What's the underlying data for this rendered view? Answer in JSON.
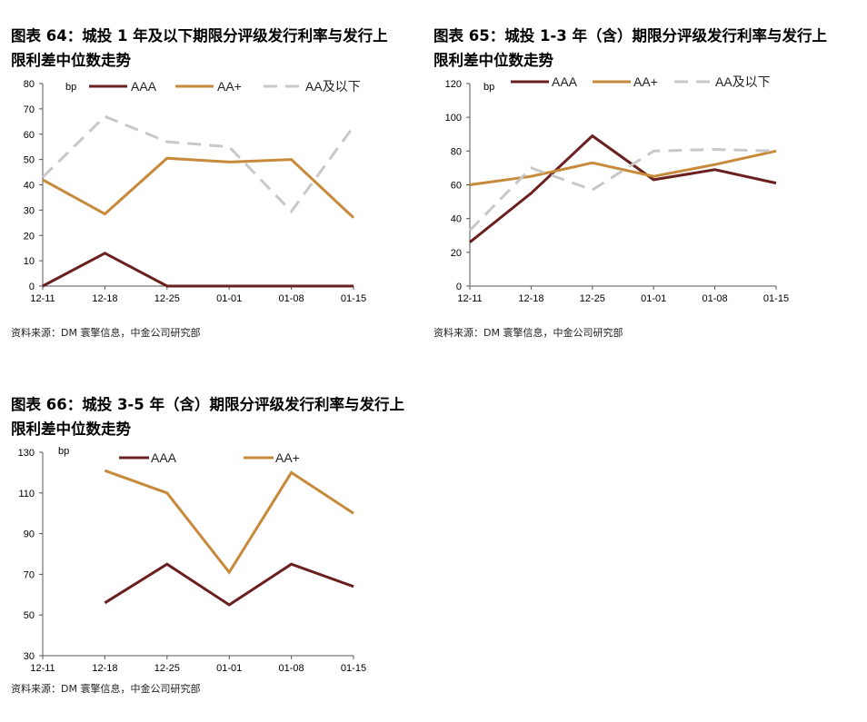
{
  "charts": [
    {
      "title_line1": "图表 64：城投 1 年及以下期限分评级发行利率与发行上",
      "title_line2": "限利差中位数走势",
      "source": "资料来源：DM 寰擎信息，中金公司研究部",
      "unit": "bp",
      "legend": [
        "AAA",
        "AA+",
        "AA及以下"
      ]
    },
    {
      "title_line1": "图表 65：城投 1-3 年（含）期限分评级发行利率与发行上",
      "title_line2": "限利差中位数走势",
      "source": "资料来源：DM 寰擎信息，中金公司研究部",
      "unit": "bp",
      "legend": [
        "AAA",
        "AA+",
        "AA及以下"
      ]
    },
    {
      "title_line1": "图表 66：城投 3-5 年（含）期限分评级发行利率与发行上",
      "title_line2": "限利差中位数走势",
      "source": "资料来源：DM 寰擎信息，中金公司研究部",
      "unit": "bp",
      "legend": [
        "AAA",
        "AA+"
      ]
    }
  ],
  "colors": {
    "AAA": "#6b2020",
    "AA+": "#c68a3a",
    "AA及以下": "#c8c8c8"
  },
  "chart_data": [
    {
      "type": "line",
      "title": "图表 64：城投 1 年及以下期限分评级发行利率与发行上限利差中位数走势",
      "ylabel": "bp",
      "x": [
        "12-11",
        "12-18",
        "12-25",
        "01-01",
        "01-08",
        "01-15"
      ],
      "yticks": [
        0,
        10,
        20,
        30,
        40,
        50,
        60,
        70,
        80
      ],
      "ylim": [
        0,
        80
      ],
      "legend_position": "top",
      "series": [
        {
          "name": "AAA",
          "values": [
            0,
            13,
            0,
            0,
            0,
            0
          ],
          "color": "#6b2020",
          "dash": false
        },
        {
          "name": "AA+",
          "values": [
            42,
            28.5,
            50.5,
            49,
            50,
            27
          ],
          "color": "#c68a3a",
          "dash": false
        },
        {
          "name": "AA及以下",
          "values": [
            43,
            67,
            57,
            55,
            29.5,
            63
          ],
          "color": "#c8c8c8",
          "dash": true
        }
      ]
    },
    {
      "type": "line",
      "title": "图表 65：城投 1-3 年（含）期限分评级发行利率与发行上限利差中位数走势",
      "ylabel": "bp",
      "x": [
        "12-11",
        "12-18",
        "12-25",
        "01-01",
        "01-08",
        "01-15"
      ],
      "yticks": [
        0,
        20,
        40,
        60,
        80,
        100,
        120
      ],
      "ylim": [
        0,
        120
      ],
      "legend_position": "top",
      "series": [
        {
          "name": "AAA",
          "values": [
            26,
            55,
            89,
            63,
            69,
            61
          ],
          "color": "#6b2020",
          "dash": false
        },
        {
          "name": "AA+",
          "values": [
            60,
            65,
            73,
            65,
            72,
            80
          ],
          "color": "#c68a3a",
          "dash": false
        },
        {
          "name": "AA及以下",
          "values": [
            33,
            70,
            57,
            80,
            81,
            80
          ],
          "color": "#c8c8c8",
          "dash": true
        }
      ]
    },
    {
      "type": "line",
      "title": "图表 66：城投 3-5 年（含）期限分评级发行利率与发行上限利差中位数走势",
      "ylabel": "bp",
      "x": [
        "12-11",
        "12-18",
        "12-25",
        "01-01",
        "01-08",
        "01-15"
      ],
      "yticks": [
        30,
        50,
        70,
        90,
        110,
        130
      ],
      "ylim": [
        30,
        130
      ],
      "legend_position": "top",
      "series": [
        {
          "name": "AAA",
          "values": [
            null,
            56,
            75,
            55,
            75,
            64
          ],
          "color": "#6b2020",
          "dash": false
        },
        {
          "name": "AA+",
          "values": [
            null,
            121,
            110,
            71,
            120,
            100
          ],
          "color": "#c68a3a",
          "dash": false
        }
      ]
    }
  ]
}
